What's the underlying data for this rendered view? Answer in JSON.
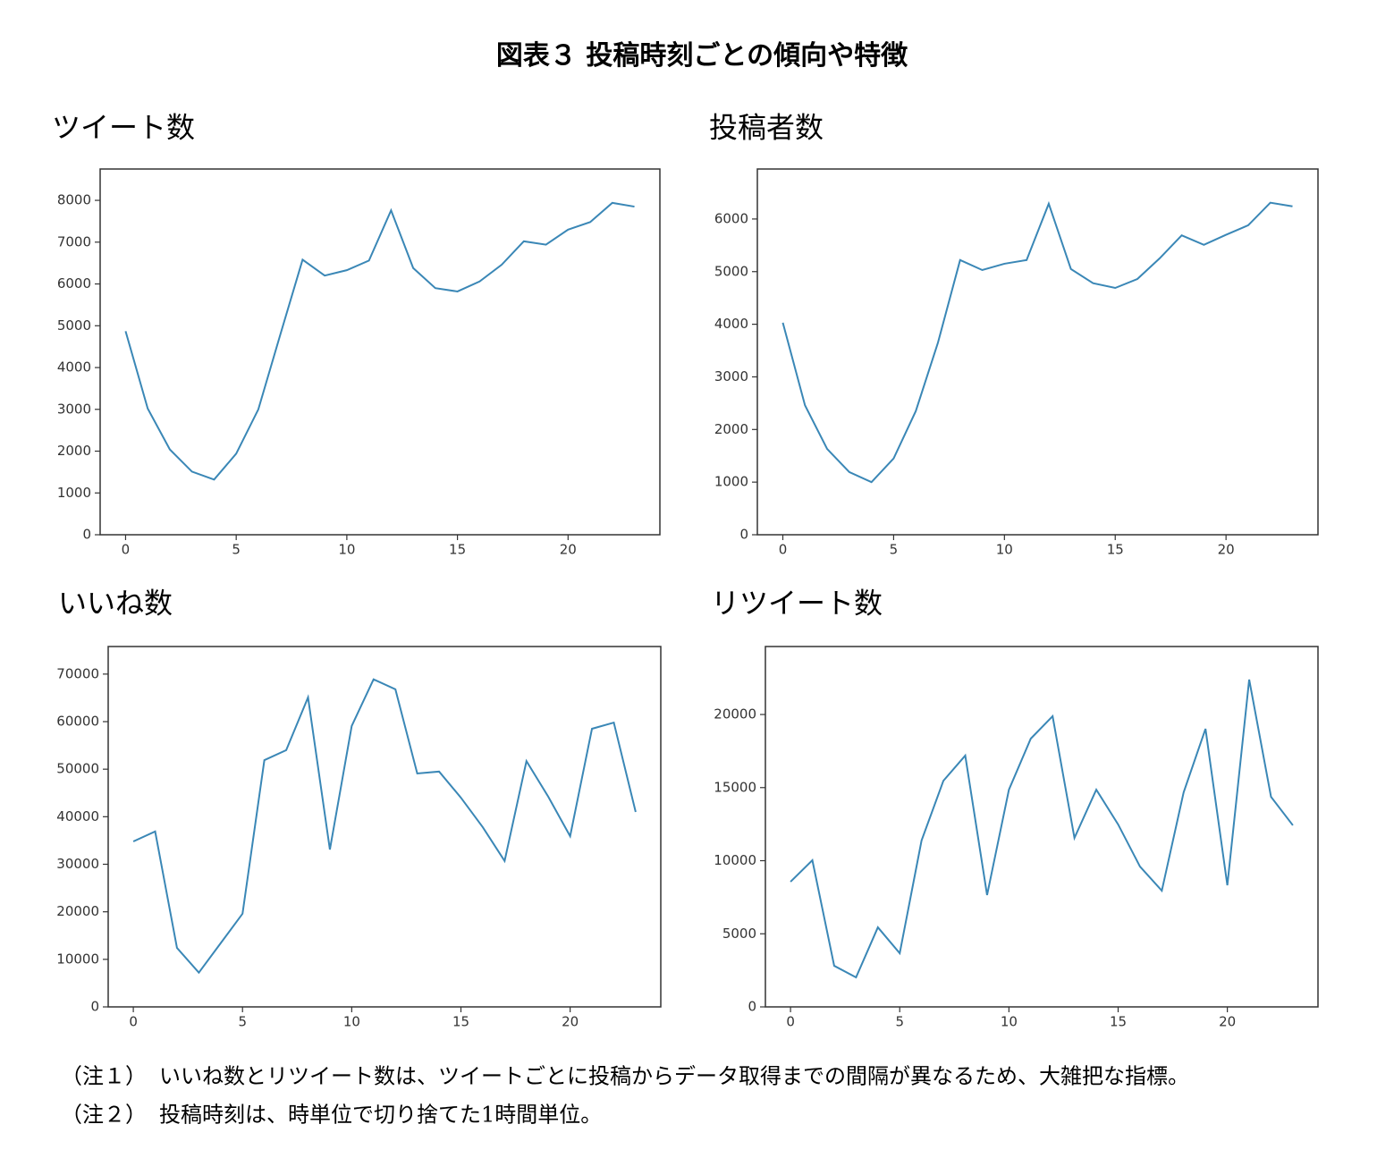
{
  "title": "図表３ 投稿時刻ごとの傾向や特徴",
  "notes": [
    {
      "label": "（注１）",
      "text": "いいね数とリツイート数は、ツイートごとに投稿からデータ取得までの間隔が異なるため、大雑把な指標。"
    },
    {
      "label": "（注２）",
      "text": "投稿時刻は、時単位で切り捨てた1時間単位。"
    }
  ],
  "chart_data": [
    {
      "type": "line",
      "title": "ツイート数",
      "color": "#3a87b6",
      "x": [
        0,
        1,
        2,
        3,
        4,
        5,
        6,
        7,
        8,
        9,
        10,
        11,
        12,
        13,
        14,
        15,
        16,
        17,
        18,
        19,
        20,
        21,
        22,
        23
      ],
      "values": [
        4870,
        3020,
        2040,
        1510,
        1320,
        1940,
        3000,
        4800,
        6580,
        6200,
        6330,
        6560,
        7760,
        6380,
        5900,
        5820,
        6060,
        6460,
        7020,
        6940,
        7300,
        7480,
        7940,
        7850
      ],
      "xlim": [
        -1.15,
        24.15
      ],
      "ylim": [
        0,
        8750
      ],
      "xticks": [
        0,
        5,
        10,
        15,
        20
      ],
      "yticks": [
        0,
        1000,
        2000,
        3000,
        4000,
        5000,
        6000,
        7000,
        8000
      ]
    },
    {
      "type": "line",
      "title": "投稿者数",
      "color": "#3a87b6",
      "x": [
        0,
        1,
        2,
        3,
        4,
        5,
        6,
        7,
        8,
        9,
        10,
        11,
        12,
        13,
        14,
        15,
        16,
        17,
        18,
        19,
        20,
        21,
        22,
        23
      ],
      "values": [
        4030,
        2460,
        1630,
        1190,
        1000,
        1450,
        2350,
        3650,
        5220,
        5030,
        5150,
        5220,
        6290,
        5050,
        4780,
        4690,
        4860,
        5250,
        5690,
        5510,
        5700,
        5880,
        6310,
        6240
      ],
      "xlim": [
        -1.15,
        24.15
      ],
      "ylim": [
        0,
        6950
      ],
      "xticks": [
        0,
        5,
        10,
        15,
        20
      ],
      "yticks": [
        0,
        1000,
        2000,
        3000,
        4000,
        5000,
        6000
      ]
    },
    {
      "type": "line",
      "title": "いいね数",
      "color": "#3a87b6",
      "x": [
        0,
        1,
        2,
        3,
        4,
        5,
        6,
        7,
        8,
        9,
        10,
        11,
        12,
        13,
        14,
        15,
        16,
        17,
        18,
        19,
        20,
        21,
        22,
        23
      ],
      "values": [
        34800,
        36900,
        12400,
        7200,
        13400,
        19600,
        51900,
        54000,
        65100,
        33100,
        59100,
        68900,
        66800,
        49100,
        49500,
        44000,
        37800,
        30700,
        51700,
        44200,
        35900,
        58500,
        59800,
        41000
      ],
      "xlim": [
        -1.15,
        24.15
      ],
      "ylim": [
        0,
        75800
      ],
      "xticks": [
        0,
        5,
        10,
        15,
        20
      ],
      "yticks": [
        0,
        10000,
        20000,
        30000,
        40000,
        50000,
        60000,
        70000
      ]
    },
    {
      "type": "line",
      "title": "リツイート数",
      "color": "#3a87b6",
      "x": [
        0,
        1,
        2,
        3,
        4,
        5,
        6,
        7,
        8,
        9,
        10,
        11,
        12,
        13,
        14,
        15,
        16,
        17,
        18,
        19,
        20,
        21,
        22,
        23
      ],
      "values": [
        8560,
        10030,
        2810,
        2020,
        5440,
        3670,
        11380,
        15470,
        17190,
        7650,
        14860,
        18350,
        19880,
        11560,
        14860,
        12480,
        9600,
        7950,
        14680,
        19020,
        8320,
        22390,
        14370,
        12420
      ],
      "xlim": [
        -1.15,
        24.15
      ],
      "ylim": [
        0,
        24650
      ],
      "xticks": [
        0,
        5,
        10,
        15,
        20
      ],
      "yticks": [
        0,
        5000,
        10000,
        15000,
        20000
      ]
    }
  ]
}
